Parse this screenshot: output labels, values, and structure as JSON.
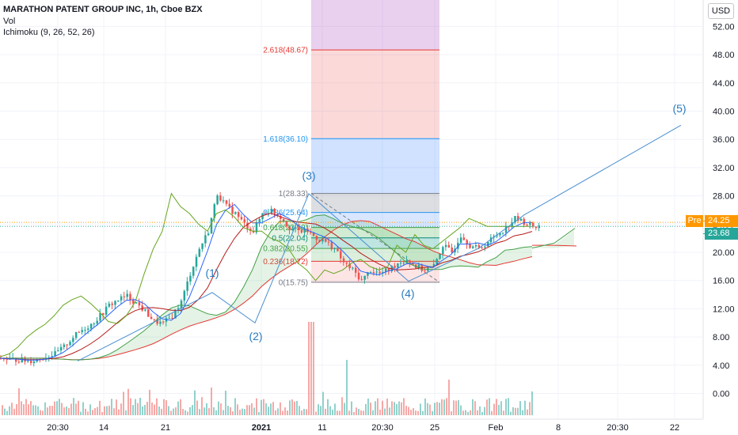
{
  "header": {
    "title": "MARATHON PATENT GROUP INC, 1h, Cboe BZX",
    "vol_label": "Vol",
    "indicator_label": "Ichimoku (9, 26, 52, 26)",
    "currency_button": "USD"
  },
  "price_tags": {
    "pre_label": "Pre",
    "pre_price": "24.25",
    "last_price": "23.68"
  },
  "colors": {
    "up": "#26a69a",
    "down": "#ef5350",
    "accent_blue": "#2962ff",
    "wave_text": "#2a7bbf",
    "pre_orange": "#ff9800"
  },
  "chart_data": {
    "type": "candlestick",
    "ylim": [
      -2.5,
      54
    ],
    "y_ticks": [
      52.0,
      48.0,
      44.0,
      40.0,
      36.0,
      32.0,
      28.0,
      24.0,
      20.0,
      16.0,
      12.0,
      8.0,
      4.0,
      0.0
    ],
    "y_tick_labels": [
      "52.00",
      "48.00",
      "44.00",
      "40.00",
      "36.00",
      "32.00",
      "28.00",
      "24.00",
      "20.00",
      "16.00",
      "12.00",
      "8.00",
      "4.00",
      "0.00"
    ],
    "x_tick_labels": [
      "20:30",
      "14",
      "21",
      "2021",
      "11",
      "20:30",
      "25",
      "Feb",
      "8",
      "20:30",
      "22"
    ],
    "prices": [
      5.0,
      4.8,
      4.8,
      4.6,
      4.8,
      5.2,
      5.6,
      6.6,
      8.0,
      9.0,
      9.8,
      11.0,
      12.5,
      13.3,
      13.8,
      12.8,
      11.6,
      10.2,
      9.9,
      11.0,
      13.0,
      17.0,
      20.5,
      23.0,
      28.33,
      26.5,
      25.5,
      24.0,
      23.0,
      25.5,
      26.0,
      25.0,
      23.5,
      23.0,
      23.0,
      22.0,
      21.5,
      20.5,
      18.5,
      17.5,
      16.0,
      17.5,
      17.0,
      17.5,
      18.5,
      19.0,
      18.0,
      17.5,
      18.0,
      21.0,
      20.0,
      22.5,
      21.0,
      20.5,
      21.5,
      22.5,
      23.5,
      24.8,
      24.25,
      23.68
    ],
    "fibonacci": {
      "levels": [
        {
          "label": "2.618(48.67)",
          "value": 48.67
        },
        {
          "label": "1.618(36.10)",
          "value": 36.1
        },
        {
          "label": "1(28.33)",
          "value": 28.33
        },
        {
          "label": "0.786(25.64)",
          "value": 25.64
        },
        {
          "label": "0.618(23.52)",
          "value": 23.52
        },
        {
          "label": "0.5(22.04)",
          "value": 22.04
        },
        {
          "label": "0.382(20.55)",
          "value": 20.55
        },
        {
          "label": "0.236(18.72)",
          "value": 18.72
        },
        {
          "label": "0(15.75)",
          "value": 15.75
        }
      ]
    },
    "wave_labels": [
      {
        "label": "(1)",
        "value": 14.2
      },
      {
        "label": "(2)",
        "value": 9.9
      },
      {
        "label": "(3)",
        "value": 28.4
      },
      {
        "label": "(4)",
        "value": 15.7
      },
      {
        "label": "(5)",
        "value": 38.0
      }
    ],
    "current_price": 24.25,
    "last_price": 23.68
  }
}
